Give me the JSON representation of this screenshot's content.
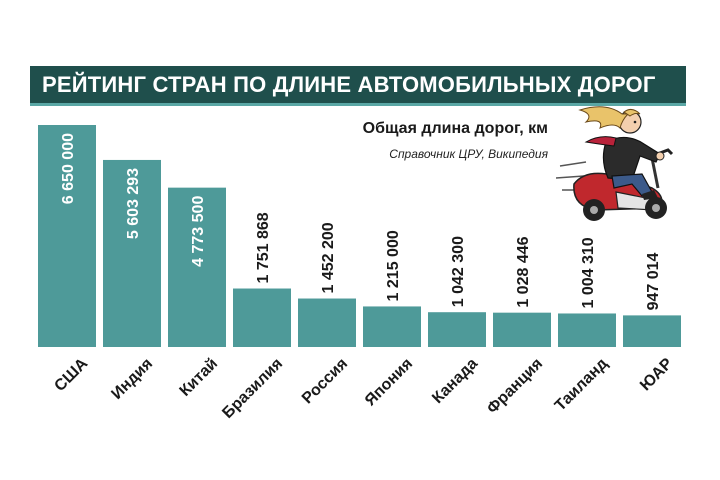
{
  "header": {
    "title": "РЕЙТИНГ СТРАН ПО ДЛИНЕ АВТОМОБИЛЬНЫХ ДОРОГ",
    "subtitle": "Общая длина дорог, км",
    "source": "Справочник ЦРУ, Википедия"
  },
  "colors": {
    "bar": "#4e9a99",
    "title_band": "#1f4f4c",
    "title_border": "#5aa7a5",
    "label_in": "#ffffff",
    "label_out": "#1a1a1a"
  },
  "chart_data": {
    "type": "bar",
    "orientation": "vertical",
    "categories": [
      "США",
      "Индия",
      "Китай",
      "Бразилия",
      "Россия",
      "Япония",
      "Канада",
      "Франция",
      "Таиланд",
      "ЮАР"
    ],
    "values": [
      6650000,
      5603293,
      4773500,
      1751868,
      1452200,
      1215000,
      1042300,
      1028446,
      1004310,
      947014
    ],
    "value_labels": [
      "6 650 000",
      "5 603 293",
      "4 773 500",
      "1 751 868",
      "1 452 200",
      "1 215 000",
      "1 042 300",
      "1 028 446",
      "1 004 310",
      "947 014"
    ],
    "ylabel": "Общая длина дорог, км",
    "ylim": [
      0,
      6650000
    ],
    "grid": false,
    "legend": "none"
  }
}
